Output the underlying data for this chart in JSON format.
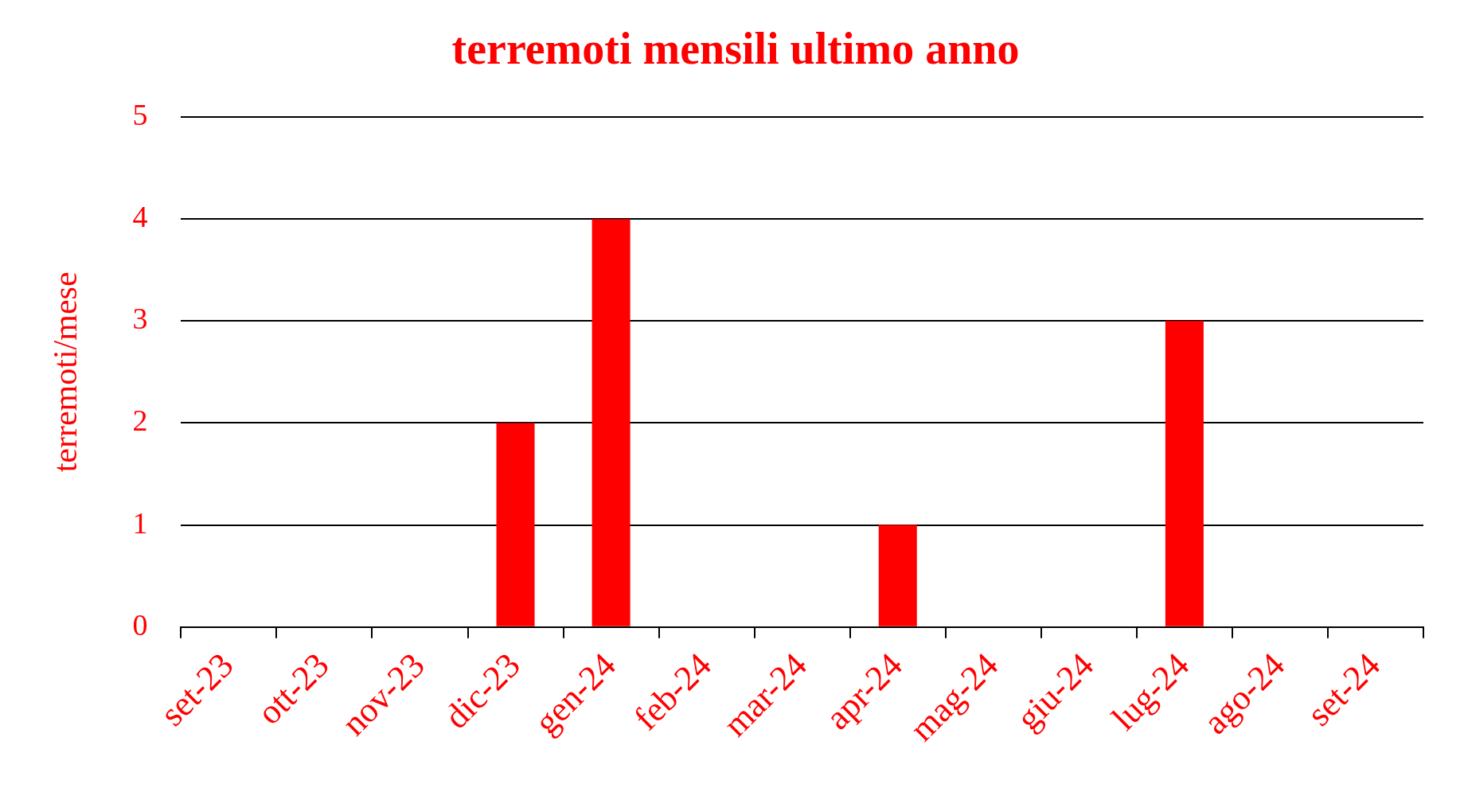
{
  "chart_data": {
    "type": "bar",
    "title": "terremoti mensili ultimo anno",
    "ylabel": "terremoti/mese",
    "categories": [
      "set-23",
      "ott-23",
      "nov-23",
      "dic-23",
      "gen-24",
      "feb-24",
      "mar-24",
      "apr-24",
      "mag-24",
      "giu-24",
      "lug-24",
      "ago-24",
      "set-24"
    ],
    "values": [
      0,
      0,
      0,
      2,
      4,
      0,
      0,
      1,
      0,
      0,
      3,
      0,
      0
    ],
    "color": "#ff0000",
    "ylim": [
      0,
      5
    ],
    "yticks": [
      0,
      1,
      2,
      3,
      4,
      5
    ],
    "grid": "y",
    "legend": false
  }
}
